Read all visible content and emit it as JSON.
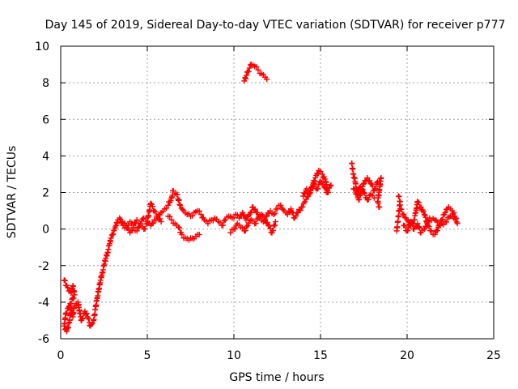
{
  "chart_data": {
    "type": "scatter",
    "title": "Day 145 of 2019, Sidereal Day-to-day VTEC variation (SDTVAR) for receiver p777",
    "xlabel": "GPS time / hours",
    "ylabel": "SDTVAR / TECUs",
    "xlim": [
      0,
      25
    ],
    "ylim": [
      -6,
      10
    ],
    "xticks": [
      "0",
      "5",
      "10",
      "15",
      "20",
      "25"
    ],
    "yticks": [
      "-6",
      "-4",
      "-2",
      "0",
      "2",
      "4",
      "6",
      "8",
      "10"
    ],
    "grid": true,
    "marker": "+",
    "color": "#ff0000",
    "series": [
      {
        "name": "SDTVAR",
        "segments": [
          [
            [
              0.2,
              -2.8
            ],
            [
              0.4,
              -3.2
            ],
            [
              0.6,
              -3.5
            ],
            [
              0.7,
              -3.1
            ],
            [
              0.8,
              -3.6
            ],
            [
              0.5,
              -4.2
            ],
            [
              0.3,
              -4.6
            ],
            [
              0.2,
              -5.3
            ],
            [
              0.35,
              -5.6
            ],
            [
              0.5,
              -5.1
            ],
            [
              0.6,
              -4.4
            ],
            [
              0.7,
              -4.8
            ],
            [
              0.8,
              -4.2
            ],
            [
              1.0,
              -4.0
            ],
            [
              1.1,
              -4.6
            ],
            [
              1.2,
              -5.0
            ],
            [
              1.4,
              -4.5
            ],
            [
              1.6,
              -4.9
            ],
            [
              1.7,
              -5.3
            ],
            [
              1.9,
              -5.0
            ],
            [
              2.0,
              -4.4
            ],
            [
              2.1,
              -3.8
            ],
            [
              2.2,
              -3.3
            ],
            [
              2.3,
              -2.8
            ],
            [
              2.4,
              -2.4
            ],
            [
              2.5,
              -2.0
            ],
            [
              2.6,
              -1.6
            ],
            [
              2.7,
              -1.3
            ],
            [
              2.8,
              -0.9
            ],
            [
              2.9,
              -0.5
            ],
            [
              3.0,
              -0.3
            ],
            [
              3.1,
              0.0
            ],
            [
              3.2,
              0.2
            ],
            [
              3.3,
              0.5
            ],
            [
              3.4,
              0.6
            ],
            [
              3.5,
              0.4
            ],
            [
              3.6,
              0.2
            ],
            [
              3.8,
              0.1
            ],
            [
              4.0,
              -0.2
            ],
            [
              4.2,
              0.1
            ],
            [
              4.4,
              -0.1
            ],
            [
              4.6,
              0.2
            ],
            [
              4.8,
              0.0
            ],
            [
              5.0,
              0.3
            ],
            [
              5.2,
              0.2
            ],
            [
              5.4,
              0.5
            ],
            [
              5.6,
              0.6
            ],
            [
              5.8,
              0.9
            ],
            [
              6.0,
              1.1
            ],
            [
              6.2,
              1.3
            ],
            [
              6.4,
              1.7
            ],
            [
              6.5,
              2.1
            ],
            [
              6.7,
              1.9
            ],
            [
              6.9,
              1.3
            ],
            [
              7.1,
              1.0
            ],
            [
              7.3,
              0.8
            ],
            [
              7.5,
              0.7
            ],
            [
              7.7,
              0.9
            ],
            [
              7.9,
              1.0
            ],
            [
              8.1,
              0.8
            ],
            [
              8.3,
              0.5
            ],
            [
              8.5,
              0.3
            ],
            [
              8.7,
              0.5
            ],
            [
              8.9,
              0.6
            ],
            [
              9.1,
              0.4
            ],
            [
              9.3,
              0.2
            ],
            [
              9.5,
              0.5
            ],
            [
              9.7,
              0.7
            ],
            [
              9.9,
              0.6
            ],
            [
              10.1,
              0.8
            ],
            [
              10.3,
              0.6
            ],
            [
              10.5,
              0.9
            ],
            [
              10.7,
              0.5
            ],
            [
              10.9,
              0.8
            ],
            [
              11.1,
              1.2
            ],
            [
              11.3,
              0.9
            ],
            [
              11.5,
              0.6
            ],
            [
              11.7,
              0.4
            ],
            [
              11.9,
              0.7
            ],
            [
              12.1,
              1.0
            ],
            [
              12.3,
              0.8
            ],
            [
              12.5,
              1.1
            ],
            [
              12.7,
              1.3
            ],
            [
              12.9,
              1.0
            ],
            [
              13.1,
              0.8
            ],
            [
              13.3,
              1.1
            ],
            [
              13.5,
              0.6
            ],
            [
              13.7,
              0.9
            ],
            [
              13.9,
              1.2
            ],
            [
              14.1,
              1.5
            ],
            [
              14.3,
              1.8
            ],
            [
              14.5,
              2.3
            ],
            [
              14.7,
              2.8
            ],
            [
              14.9,
              3.2
            ],
            [
              15.1,
              3.0
            ],
            [
              15.3,
              2.6
            ],
            [
              15.4,
              2.1
            ]
          ],
          [
            [
              10.6,
              8.1
            ],
            [
              10.8,
              8.6
            ],
            [
              11.0,
              9.0
            ],
            [
              11.2,
              8.9
            ],
            [
              11.4,
              8.7
            ],
            [
              11.6,
              8.5
            ],
            [
              11.8,
              8.3
            ],
            [
              11.9,
              8.2
            ]
          ],
          [
            [
              6.2,
              0.7
            ],
            [
              6.4,
              0.5
            ],
            [
              6.6,
              0.3
            ],
            [
              6.8,
              0.1
            ],
            [
              7.0,
              -0.3
            ],
            [
              7.2,
              -0.5
            ],
            [
              7.4,
              -0.6
            ],
            [
              7.6,
              -0.5
            ],
            [
              7.8,
              -0.4
            ],
            [
              8.0,
              -0.3
            ]
          ],
          [
            [
              3.6,
              0.3
            ],
            [
              3.8,
              0.2
            ],
            [
              4.0,
              0.4
            ],
            [
              4.2,
              0.2
            ],
            [
              4.4,
              0.5
            ],
            [
              4.6,
              0.3
            ],
            [
              4.8,
              0.6
            ],
            [
              5.0,
              0.4
            ],
            [
              5.2,
              1.4
            ],
            [
              5.4,
              1.0
            ],
            [
              5.6,
              0.7
            ],
            [
              5.8,
              0.4
            ]
          ],
          [
            [
              9.8,
              -0.2
            ],
            [
              10.0,
              0.0
            ],
            [
              10.2,
              0.3
            ],
            [
              10.4,
              0.1
            ],
            [
              10.6,
              -0.1
            ],
            [
              10.8,
              0.2
            ],
            [
              11.0,
              0.5
            ],
            [
              11.2,
              0.3
            ],
            [
              11.4,
              0.6
            ],
            [
              11.6,
              0.8
            ],
            [
              11.8,
              0.5
            ],
            [
              12.0,
              0.2
            ],
            [
              12.2,
              -0.2
            ],
            [
              12.4,
              0.4
            ]
          ],
          [
            [
              14.0,
              1.8
            ],
            [
              14.2,
              2.2
            ],
            [
              14.4,
              2.0
            ],
            [
              14.6,
              2.5
            ],
            [
              14.8,
              2.2
            ],
            [
              15.0,
              2.6
            ],
            [
              15.2,
              2.3
            ],
            [
              15.4,
              2.0
            ],
            [
              15.6,
              2.4
            ]
          ],
          [
            [
              16.8,
              3.6
            ],
            [
              16.9,
              3.0
            ],
            [
              17.0,
              2.6
            ],
            [
              17.1,
              2.0
            ],
            [
              17.2,
              1.6
            ],
            [
              17.3,
              1.9
            ],
            [
              17.5,
              2.5
            ],
            [
              17.7,
              2.8
            ],
            [
              17.9,
              2.5
            ],
            [
              18.1,
              2.1
            ],
            [
              18.3,
              2.6
            ],
            [
              18.5,
              2.8
            ],
            [
              18.3,
              1.5
            ],
            [
              18.4,
              1.2
            ]
          ],
          [
            [
              16.9,
              2.2
            ],
            [
              17.1,
              1.9
            ],
            [
              17.3,
              2.3
            ],
            [
              17.5,
              2.0
            ],
            [
              17.7,
              1.6
            ],
            [
              17.9,
              1.9
            ],
            [
              18.1,
              1.7
            ]
          ],
          [
            [
              19.6,
              1.1
            ],
            [
              19.8,
              0.8
            ],
            [
              20.0,
              0.5
            ],
            [
              20.2,
              0.2
            ],
            [
              20.4,
              0.5
            ],
            [
              20.5,
              0.9
            ],
            [
              20.6,
              1.5
            ],
            [
              20.8,
              1.2
            ],
            [
              21.0,
              0.8
            ],
            [
              21.2,
              0.2
            ],
            [
              21.4,
              -0.1
            ],
            [
              21.6,
              -0.3
            ],
            [
              21.8,
              0.1
            ],
            [
              22.0,
              0.5
            ],
            [
              22.2,
              0.9
            ],
            [
              22.4,
              1.2
            ],
            [
              22.6,
              1.0
            ],
            [
              22.8,
              0.6
            ],
            [
              22.9,
              0.3
            ]
          ],
          [
            [
              19.8,
              0.2
            ],
            [
              20.0,
              -0.1
            ],
            [
              20.2,
              0.4
            ],
            [
              20.4,
              0.0
            ],
            [
              20.6,
              0.3
            ],
            [
              20.8,
              -0.2
            ],
            [
              21.0,
              0.0
            ],
            [
              21.3,
              0.6
            ],
            [
              21.6,
              0.5
            ],
            [
              21.9,
              0.2
            ],
            [
              22.2,
              0.4
            ],
            [
              22.5,
              0.7
            ],
            [
              22.8,
              0.5
            ]
          ],
          [
            [
              19.5,
              1.8
            ],
            [
              19.6,
              1.5
            ],
            [
              19.4,
              -0.1
            ]
          ]
        ]
      }
    ]
  }
}
